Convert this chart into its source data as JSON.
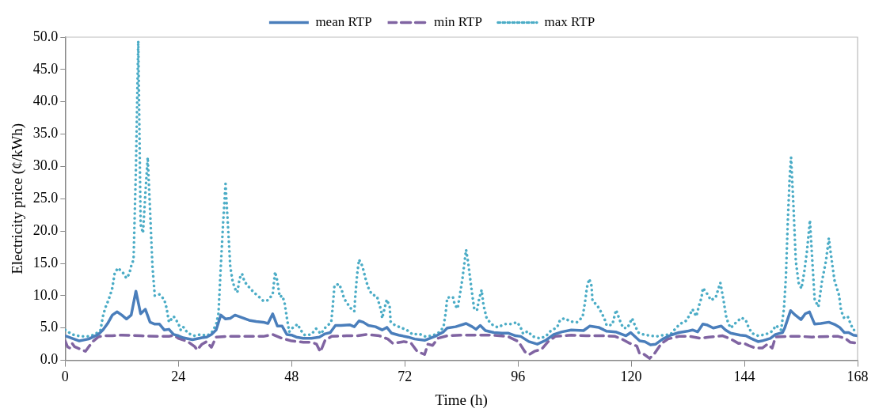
{
  "chart_data": {
    "type": "line",
    "xlabel": "Time (h)",
    "ylabel": "Electricity price (¢/kWh)",
    "xlim": [
      0,
      168
    ],
    "xticks": [
      0,
      24,
      48,
      72,
      96,
      120,
      144,
      168
    ],
    "ylim": [
      0,
      50
    ],
    "yticks": [
      {
        "value": 0,
        "label": "0.0"
      },
      {
        "value": 5,
        "label": "5.0"
      },
      {
        "value": 10,
        "label": "10.0"
      },
      {
        "value": 15,
        "label": "15.0"
      },
      {
        "value": 20,
        "label": "20.0"
      },
      {
        "value": 25,
        "label": "25.0"
      },
      {
        "value": 30,
        "label": "30.0"
      },
      {
        "value": 35,
        "label": "35.0"
      },
      {
        "value": 40,
        "label": "40.0"
      },
      {
        "value": 45,
        "label": "45.0"
      },
      {
        "value": 50,
        "label": "50.0"
      }
    ],
    "grid": false,
    "legend": "top",
    "marker": "none",
    "series": [
      {
        "name": "mean RTP",
        "color": "#4a7ebb",
        "line_style": "solid",
        "x": [
          0,
          1.5,
          3,
          5,
          7,
          8,
          9,
          10,
          11,
          12,
          13,
          14,
          15,
          16,
          17,
          18,
          19,
          20,
          21,
          22,
          23,
          24,
          25,
          27,
          29,
          30,
          31,
          32,
          33,
          34,
          35,
          36,
          37.5,
          39,
          40.5,
          42,
          43,
          44,
          45,
          46,
          47,
          48,
          49,
          50.5,
          52.2,
          53.9,
          55.1,
          56.2,
          57.3,
          58.5,
          60.3,
          61.3,
          62.3,
          63.2,
          64.3,
          65.8,
          67.2,
          68.2,
          69.2,
          70.7,
          72.7,
          74.1,
          76.2,
          77.3,
          78.7,
          80.2,
          81,
          82.8,
          85,
          86.3,
          87.1,
          88,
          89.1,
          90.9,
          92.6,
          94,
          95.5,
          96.6,
          98.3,
          100.1,
          101.9,
          103.6,
          105.3,
          107.3,
          109.9,
          111.2,
          113.1,
          114.8,
          116.7,
          118.9,
          119.9,
          121.8,
          122.9,
          124.1,
          125.2,
          126.7,
          128.4,
          130.1,
          131.9,
          133,
          134.1,
          135.2,
          136,
          137.4,
          139.1,
          140,
          141.1,
          143.1,
          144.3,
          145.4,
          146.9,
          147.7,
          149.5,
          150.6,
          152.1,
          152.6,
          153.8,
          154.8,
          156,
          156.9,
          157.8,
          158.9,
          160.2,
          161.9,
          163.3,
          164.2,
          165.2,
          166.1,
          167.1,
          168
        ],
        "values": [
          3.8,
          3.4,
          3,
          3.3,
          4,
          4.7,
          5.7,
          7,
          7.5,
          7,
          6.4,
          7,
          10.7,
          7.2,
          7.9,
          5.9,
          5.6,
          5.6,
          4.7,
          4.8,
          4,
          3.8,
          3.5,
          3.2,
          3.5,
          3.6,
          4,
          4.7,
          7,
          6.4,
          6.5,
          7,
          6.6,
          6.2,
          6,
          5.9,
          5.7,
          7.2,
          5.3,
          5.3,
          4,
          3.9,
          3.6,
          3.4,
          3.4,
          3.6,
          4.1,
          4.3,
          5.4,
          5.4,
          5.5,
          5.2,
          6.1,
          5.9,
          5.4,
          5.2,
          4.7,
          5.1,
          4.2,
          3.9,
          3.6,
          3.3,
          3.1,
          3.4,
          3.8,
          4.4,
          5,
          5.2,
          5.7,
          5.2,
          4.8,
          5.4,
          4.6,
          4.3,
          4.2,
          4.2,
          3.8,
          3.7,
          2.9,
          2.5,
          3.1,
          4,
          4.4,
          4.7,
          4.6,
          5.3,
          5.1,
          4.5,
          4.4,
          3.8,
          4.3,
          3,
          2.9,
          2.4,
          2.5,
          3.3,
          3.9,
          4.3,
          4.5,
          4.7,
          4.4,
          5.6,
          5.5,
          5,
          5.3,
          4.7,
          4.2,
          3.9,
          3.8,
          3.4,
          2.9,
          3,
          3.4,
          4,
          4.3,
          5.1,
          7.7,
          7,
          6.3,
          7.2,
          7.5,
          5.6,
          5.7,
          5.9,
          5.5,
          5.1,
          4.3,
          4.3,
          3.9,
          3.8
        ]
      },
      {
        "name": "min RTP",
        "color": "#8064a2",
        "line_style": "dashed",
        "x": [
          0,
          0.5,
          1,
          1.5,
          2,
          4.3,
          5,
          6,
          7,
          8,
          10,
          12,
          16,
          20,
          22,
          23,
          24,
          26,
          27.5,
          28,
          29,
          30,
          31,
          32,
          34,
          38,
          42,
          44,
          46,
          48,
          50.5,
          52.2,
          53.3,
          54.1,
          55.1,
          56.5,
          59.7,
          62,
          63.8,
          66.6,
          68.4,
          69.5,
          71.8,
          73.3,
          74.6,
          76.2,
          76.9,
          77.9,
          79,
          81,
          84.5,
          87.4,
          90.3,
          93.8,
          96.1,
          97.5,
          98.4,
          99.5,
          101,
          102.4,
          103.9,
          107.3,
          110.5,
          113.9,
          116.6,
          118,
          119.5,
          121.2,
          121.8,
          122.6,
          123.9,
          124.9,
          126.4,
          127.8,
          130.1,
          132.4,
          134.8,
          136.5,
          139.4,
          141.1,
          142.8,
          143.7,
          144.9,
          146.3,
          147.8,
          148.9,
          149.9,
          150.6,
          153.2,
          156.1,
          158.4,
          161.9,
          163.9,
          165.4,
          166.4,
          167.4,
          168
        ],
        "values": [
          3,
          2.1,
          1.9,
          2.6,
          2.1,
          1.4,
          2.1,
          3,
          3.6,
          3.8,
          3.8,
          3.9,
          3.8,
          3.7,
          3.7,
          3.9,
          3.4,
          2.9,
          2.1,
          1.6,
          2.5,
          2.9,
          2,
          3.6,
          3.7,
          3.7,
          3.7,
          4,
          3.4,
          3,
          2.8,
          2.8,
          2.5,
          1.3,
          3.1,
          3.7,
          3.8,
          3.8,
          4,
          3.8,
          3.3,
          2.6,
          2.9,
          2.7,
          1.4,
          0.9,
          2.5,
          2.3,
          3.4,
          3.8,
          3.9,
          3.9,
          3.9,
          3.7,
          2.9,
          1.3,
          0.9,
          1.4,
          1.7,
          2.9,
          3.7,
          3.9,
          3.8,
          3.8,
          3.7,
          3.3,
          2.7,
          2.2,
          1,
          1,
          0.3,
          1,
          2.6,
          3.3,
          3.7,
          3.7,
          3.4,
          3.6,
          3.8,
          3.3,
          2.6,
          2.7,
          2.3,
          1.9,
          1.9,
          2.5,
          1.9,
          3.6,
          3.7,
          3.7,
          3.6,
          3.7,
          3.7,
          3.4,
          2.8,
          2.7,
          2.9
        ]
      },
      {
        "name": "max RTP",
        "color": "#4bacc6",
        "line_style": "dotted",
        "x": [
          0,
          1.5,
          3.3,
          5,
          6.3,
          7.5,
          8,
          8.5,
          9,
          9.5,
          10,
          10.5,
          11.2,
          12.3,
          13,
          13.6,
          14,
          14.5,
          15,
          15.5,
          16,
          16.5,
          17,
          17.5,
          18,
          18.5,
          19,
          20,
          21,
          21.5,
          22,
          23,
          24,
          24.5,
          25,
          26,
          27.3,
          28.8,
          30,
          31,
          32,
          32.5,
          33,
          33.5,
          34,
          34.5,
          35,
          35.5,
          36,
          36.5,
          37,
          37.5,
          38,
          39,
          40,
          41,
          42,
          43,
          44,
          44.5,
          45,
          45.5,
          46,
          46.5,
          47,
          47.5,
          48,
          49.3,
          49.9,
          50.8,
          52.2,
          53.2,
          54.2,
          55.2,
          56.4,
          56.7,
          57.1,
          58.1,
          58.7,
          59.1,
          60,
          60.9,
          61.3,
          61.5,
          61.9,
          62.3,
          63,
          63.8,
          64.3,
          65,
          66.1,
          67,
          67.2,
          67.9,
          68.2,
          68.8,
          69,
          69.8,
          71,
          72.4,
          73.7,
          75,
          76.3,
          77.9,
          79.2,
          80.2,
          80.7,
          81,
          82.2,
          82.6,
          83.2,
          83.7,
          84.2,
          84.6,
          85,
          85.5,
          85.9,
          86.3,
          86.7,
          87.3,
          87.8,
          88.3,
          88.7,
          89.4,
          90.6,
          91.7,
          93.2,
          94.6,
          95.8,
          96.5,
          97.1,
          98.1,
          99.1,
          100.6,
          101.9,
          103,
          104.3,
          104.9,
          105.8,
          107.2,
          108.5,
          109.7,
          110.2,
          110.6,
          111.1,
          111.6,
          111.8,
          112.8,
          113.6,
          114.3,
          114.8,
          116,
          116.8,
          117.7,
          118.3,
          119.2,
          120.2,
          120.8,
          121.5,
          122.6,
          124.1,
          125.4,
          126.8,
          128.3,
          129.4,
          130.3,
          131.6,
          132.4,
          133,
          133.8,
          134.4,
          134.9,
          135.2,
          136.2,
          136.9,
          137.9,
          138.9,
          139.6,
          140.1,
          140.6,
          141.1,
          142.3,
          143.4,
          144.3,
          144.9,
          145.6,
          146.9,
          148.5,
          149.9,
          150.7,
          151.8,
          152.4,
          152.8,
          153.2,
          153.6,
          153.9,
          154.4,
          154.9,
          155.5,
          156.1,
          156.7,
          157.3,
          157.9,
          158.3,
          158.9,
          159.7,
          160.4,
          161.3,
          161.9,
          162.5,
          163.1,
          164.1,
          164.5,
          165.1,
          165.9,
          166.5,
          167.1,
          167.9
        ],
        "values": [
          4.7,
          4,
          3.7,
          3.7,
          4,
          4.7,
          6.8,
          8.1,
          9,
          10,
          11.2,
          13.5,
          14.3,
          13.5,
          12.7,
          13.4,
          14.6,
          15.6,
          29.6,
          49.4,
          21,
          19.7,
          25.8,
          31.4,
          23.2,
          14.6,
          10,
          10.2,
          9.4,
          8.1,
          5.9,
          6.8,
          5.7,
          4.7,
          5.2,
          4.2,
          3.8,
          4,
          3.8,
          4.2,
          5.5,
          7.2,
          14.6,
          21.4,
          27.3,
          21,
          14.6,
          12.2,
          11.1,
          10.5,
          12.7,
          13.4,
          12.2,
          11.3,
          10.5,
          9.9,
          9.2,
          9.3,
          10.2,
          13.7,
          12.2,
          9.8,
          10,
          9,
          6.6,
          4.4,
          4.9,
          5.6,
          4.7,
          3.9,
          4,
          4.9,
          4.1,
          5.1,
          5.9,
          8.1,
          11.6,
          11.8,
          10.7,
          9.6,
          8.6,
          7.7,
          7.6,
          9.8,
          13.3,
          15.6,
          14.6,
          12.3,
          11.2,
          10.2,
          9.9,
          7.7,
          6.5,
          8.6,
          9.4,
          8.3,
          6,
          5.5,
          5.1,
          4.7,
          4,
          4.1,
          3.7,
          3.8,
          4.3,
          5.1,
          7.5,
          9.7,
          9.8,
          8.6,
          8,
          10.2,
          12.5,
          14.8,
          17.1,
          14.8,
          12.5,
          10.2,
          8.1,
          7.7,
          9.6,
          10.9,
          8.5,
          6.4,
          5.5,
          5.1,
          5.6,
          5.6,
          5.9,
          5.2,
          4.1,
          4.5,
          3.7,
          3.4,
          3.7,
          4.6,
          5.1,
          6.2,
          6.5,
          6,
          5.9,
          6.7,
          8.9,
          11.2,
          12.6,
          11.5,
          9.2,
          8.5,
          7.5,
          6.5,
          5.4,
          5.5,
          7.8,
          6,
          5,
          5,
          6.5,
          5.4,
          4.3,
          4,
          3.8,
          3.7,
          3.9,
          4,
          4.9,
          5.6,
          6.1,
          7,
          7.9,
          6.8,
          8.5,
          9.7,
          11.2,
          10.2,
          9.3,
          9.7,
          12,
          9.2,
          6.9,
          5.7,
          5,
          5.9,
          6.6,
          6.2,
          5.1,
          4.2,
          3.8,
          4,
          4.5,
          5.4,
          4.7,
          8.1,
          12.8,
          21.4,
          28.3,
          31.4,
          24,
          15.4,
          12,
          11.1,
          13.7,
          17.1,
          21.7,
          16.7,
          9.4,
          8.3,
          12,
          15.4,
          18.9,
          15.6,
          12.4,
          10,
          7.7,
          6.6,
          6.8,
          5.7,
          4.7,
          4.7
        ]
      }
    ]
  }
}
